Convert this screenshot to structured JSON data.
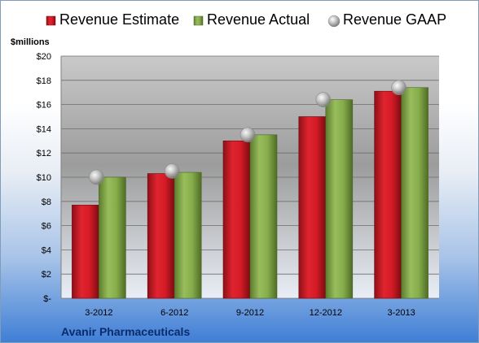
{
  "chart_data": {
    "type": "bar",
    "categories": [
      "3-2012",
      "6-2012",
      "9-2012",
      "12-2012",
      "3-2013"
    ],
    "series": [
      {
        "name": "Revenue Estimate",
        "type": "bar",
        "color": "#c8102e",
        "values": [
          7.7,
          10.3,
          13.0,
          15.0,
          17.1
        ]
      },
      {
        "name": "Revenue Actual",
        "type": "bar",
        "color": "#7ea346",
        "values": [
          10.0,
          10.4,
          13.5,
          16.4,
          17.4
        ]
      },
      {
        "name": "Revenue GAAP",
        "type": "marker",
        "color": "#b7b7b7",
        "values": [
          10.0,
          10.5,
          13.5,
          16.4,
          17.4
        ]
      }
    ],
    "ylabel": "$millions",
    "ylim": [
      0,
      20
    ],
    "yticks": [
      "$-",
      "$2",
      "$4",
      "$6",
      "$8",
      "$10",
      "$12",
      "$14",
      "$16",
      "$18",
      "$20"
    ],
    "grid": true,
    "legend_position": "top",
    "company": "Avanir Pharmaceuticals"
  }
}
